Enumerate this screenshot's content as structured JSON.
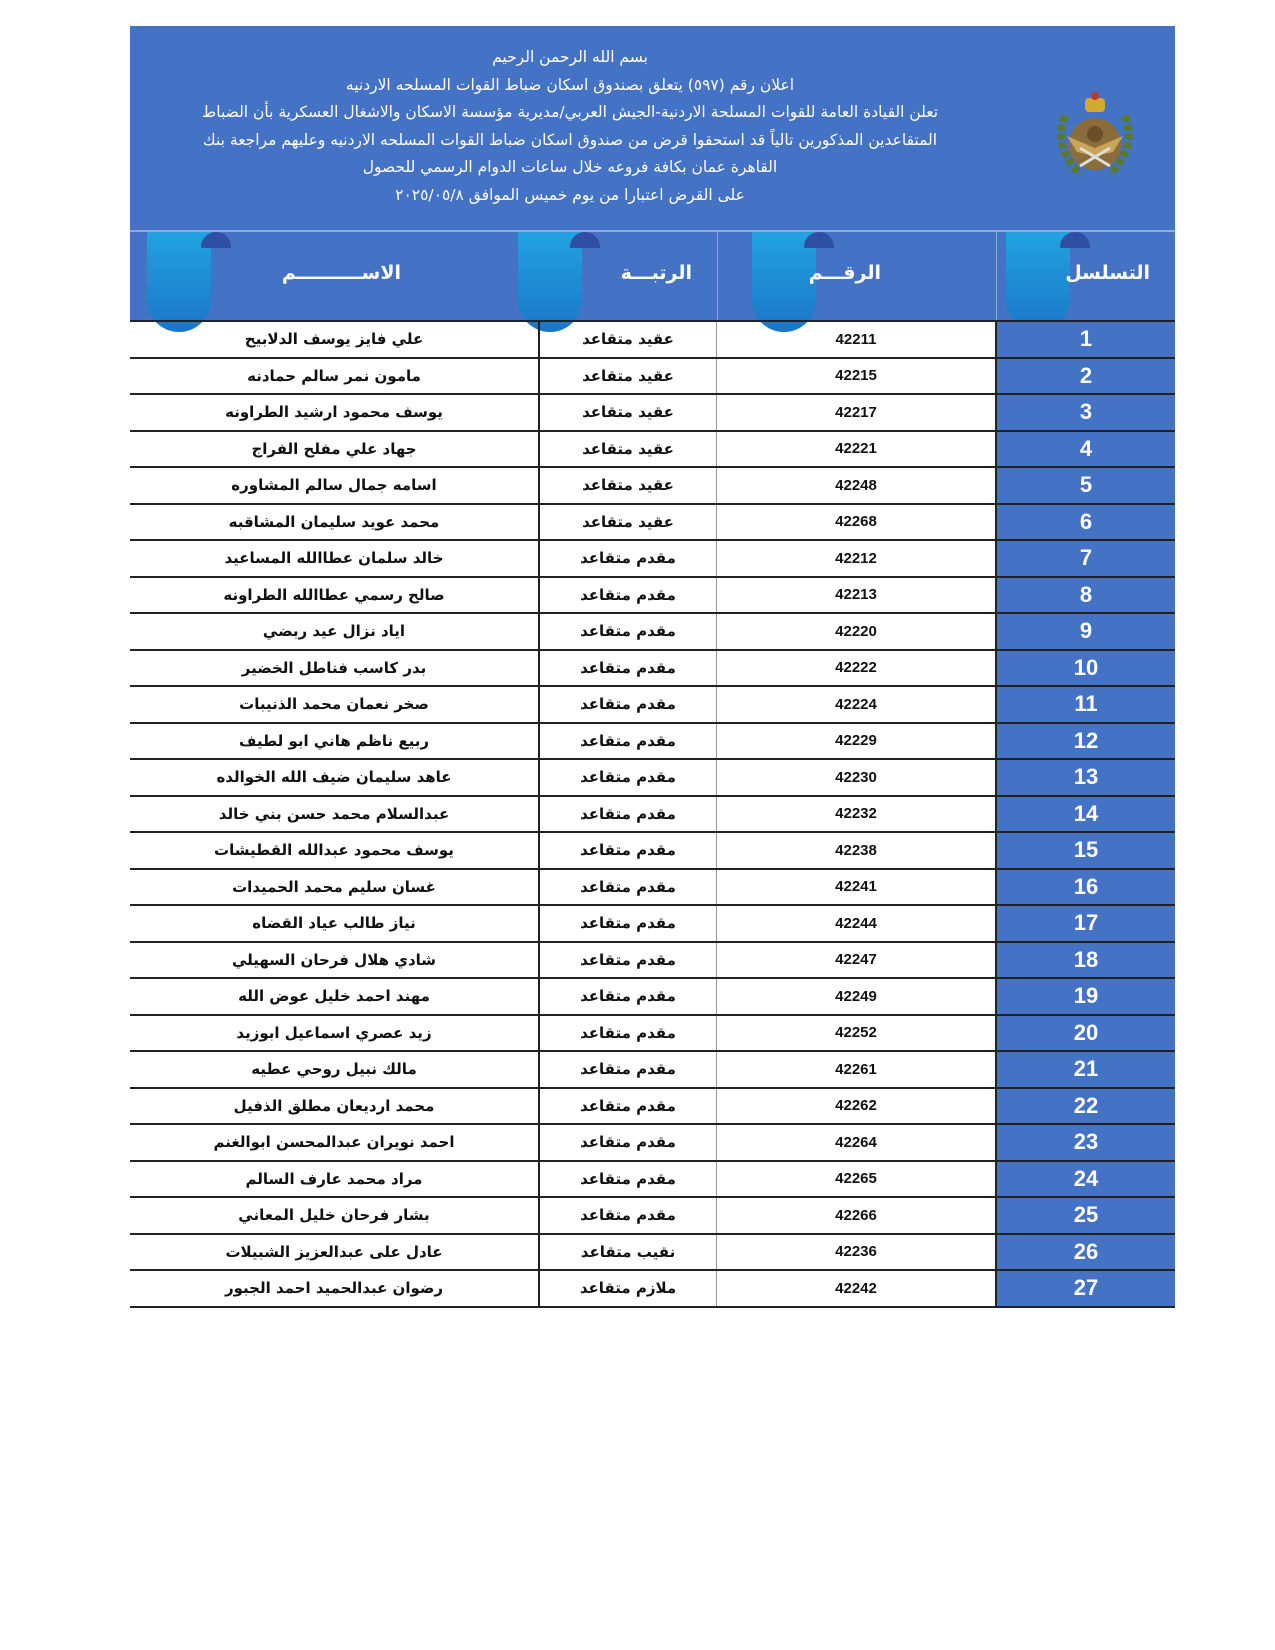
{
  "header": {
    "lines": [
      "بسم الله الرحمن الرحيم",
      "اعلان رقم (٥٩٧) يتعلق بصندوق اسكان ضباط القوات المسلحه الاردنيه",
      "تعلن القيادة العامة للقوات المسلحة الاردنية-الجيش العربي/مديرية مؤسسة الاسكان والاشغال العسكرية بأن الضباط",
      "المتقاعدين المذكورين تالياً قد استحقوا قرض من صندوق اسكان ضباط القوات المسلحه الاردنيه وعليهم مراجعة بنك",
      "القاهرة عمان بكافة فروعه  خلال ساعات الدوام الرسمي للحصول",
      "على القرض اعتبارا من  يوم خميس الموافق ٢٠٢٥/٠٥/٨"
    ],
    "emblem": "jordan-armed-forces-emblem"
  },
  "columns": {
    "serial": "التسلسل",
    "number": "الرقـــم",
    "rank": "الرتبـــة",
    "name": "الاســــــــــم"
  },
  "colors": {
    "accent": "#4472c4",
    "ribbon": "#22a3df"
  },
  "rows": [
    {
      "serial": "1",
      "number": "42211",
      "rank": "عقيد متقاعد",
      "name": "علي فايز يوسف الدلابيح"
    },
    {
      "serial": "2",
      "number": "42215",
      "rank": "عقيد متقاعد",
      "name": "مامون نمر سالم حمادنه"
    },
    {
      "serial": "3",
      "number": "42217",
      "rank": "عقيد متقاعد",
      "name": "يوسف محمود ارشيد الطراونه"
    },
    {
      "serial": "4",
      "number": "42221",
      "rank": "عقيد متقاعد",
      "name": "جهاد علي مفلح الفراج"
    },
    {
      "serial": "5",
      "number": "42248",
      "rank": "عقيد متقاعد",
      "name": "اسامه جمال سالم المشاوره"
    },
    {
      "serial": "6",
      "number": "42268",
      "rank": "عقيد متقاعد",
      "name": "محمد عويد سليمان المشاقبه"
    },
    {
      "serial": "7",
      "number": "42212",
      "rank": "مقدم متقاعد",
      "name": "خالد سلمان عطاالله المساعيد"
    },
    {
      "serial": "8",
      "number": "42213",
      "rank": "مقدم متقاعد",
      "name": "صالح رسمي عطاالله الطراونه"
    },
    {
      "serial": "9",
      "number": "42220",
      "rank": "مقدم متقاعد",
      "name": "اياد نزال عيد ربضي"
    },
    {
      "serial": "10",
      "number": "42222",
      "rank": "مقدم متقاعد",
      "name": "بدر كاسب فناطل الخضير"
    },
    {
      "serial": "11",
      "number": "42224",
      "rank": "مقدم متقاعد",
      "name": "صخر نعمان محمد الذنيبات"
    },
    {
      "serial": "12",
      "number": "42229",
      "rank": "مقدم متقاعد",
      "name": "ربيع ناظم هاني ابو لطيف"
    },
    {
      "serial": "13",
      "number": "42230",
      "rank": "مقدم متقاعد",
      "name": "عاهد سليمان ضيف الله الخوالده"
    },
    {
      "serial": "14",
      "number": "42232",
      "rank": "مقدم متقاعد",
      "name": "عبدالسلام محمد حسن بني خالد"
    },
    {
      "serial": "15",
      "number": "42238",
      "rank": "مقدم متقاعد",
      "name": "يوسف محمود عبدالله القطيشات"
    },
    {
      "serial": "16",
      "number": "42241",
      "rank": "مقدم متقاعد",
      "name": "غسان سليم محمد الحميدات"
    },
    {
      "serial": "17",
      "number": "42244",
      "rank": "مقدم متقاعد",
      "name": "نياز طالب عياد القضاه"
    },
    {
      "serial": "18",
      "number": "42247",
      "rank": "مقدم متقاعد",
      "name": "شادي هلال فرحان السهيلي"
    },
    {
      "serial": "19",
      "number": "42249",
      "rank": "مقدم متقاعد",
      "name": "مهند احمد خليل عوض الله"
    },
    {
      "serial": "20",
      "number": "42252",
      "rank": "مقدم متقاعد",
      "name": "زيد عصري اسماعيل ابوزيد"
    },
    {
      "serial": "21",
      "number": "42261",
      "rank": "مقدم متقاعد",
      "name": "مالك نبيل روحي عطيه"
    },
    {
      "serial": "22",
      "number": "42262",
      "rank": "مقدم متقاعد",
      "name": "محمد ارديعان مطلق الذفيل"
    },
    {
      "serial": "23",
      "number": "42264",
      "rank": "مقدم متقاعد",
      "name": "احمد نويران عبدالمحسن ابوالغنم"
    },
    {
      "serial": "24",
      "number": "42265",
      "rank": "مقدم متقاعد",
      "name": "مراد محمد عارف السالم"
    },
    {
      "serial": "25",
      "number": "42266",
      "rank": "مقدم متقاعد",
      "name": "بشار فرحان خليل المعاني"
    },
    {
      "serial": "26",
      "number": "42236",
      "rank": "نقيب متقاعد",
      "name": "عادل على عبدالعزيز الشبيلات"
    },
    {
      "serial": "27",
      "number": "42242",
      "rank": "ملازم متقاعد",
      "name": "رضوان عبدالحميد احمد الجبور"
    }
  ]
}
